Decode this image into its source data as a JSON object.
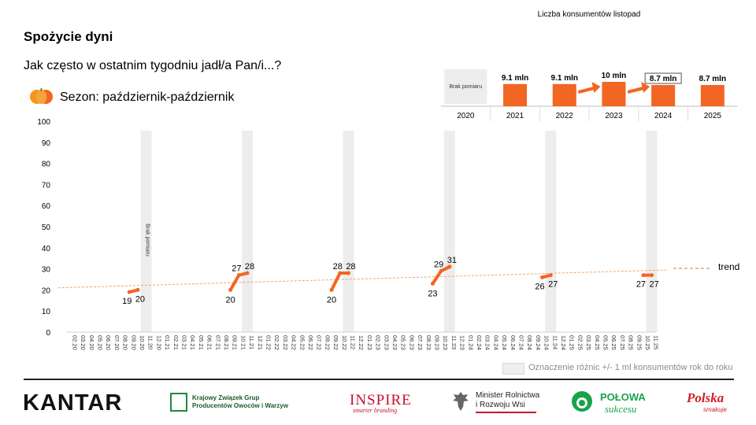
{
  "header": {
    "title": "Spożycie dyni",
    "subtitle": "Jak często w ostatnim tygodniu jadł/a Pan/i...?",
    "season": "Sezon: październik-październik"
  },
  "colors": {
    "accent": "#f26522",
    "trend": "#f4a26b",
    "band": "#ededed",
    "text": "#000000"
  },
  "chart_data": [
    {
      "type": "line",
      "title": "",
      "ylim": [
        0,
        100
      ],
      "yticks": [
        0,
        10,
        20,
        30,
        40,
        50,
        60,
        70,
        80,
        90,
        100
      ],
      "x": [
        "02.20",
        "03.20",
        "04.20",
        "05.20",
        "06.20",
        "07.20",
        "08.20",
        "09.20",
        "10.20",
        "11.20",
        "12.20",
        "01.21",
        "02.21",
        "03.21",
        "04.21",
        "05.21",
        "06.21",
        "07.21",
        "08.21",
        "09.21",
        "10.21",
        "11.21",
        "12.21",
        "01.22",
        "02.22",
        "03.22",
        "04.22",
        "05.22",
        "06.22",
        "07.22",
        "08.22",
        "09.22",
        "10.22",
        "11.22",
        "12.22",
        "01.23",
        "02.23",
        "03.23",
        "04.23",
        "05.23",
        "06.23",
        "07.23",
        "08.23",
        "09.23",
        "10.23",
        "11.23",
        "12.23",
        "01.24",
        "02.24",
        "03.24",
        "04.24",
        "05.24",
        "06.24",
        "07.24",
        "08.24",
        "09.24",
        "10.24",
        "11.24",
        "12.24",
        "01.25",
        "02.25",
        "03.25",
        "04.25",
        "05.25",
        "06.25",
        "07.25",
        "08.25",
        "09.25",
        "10.25",
        "11.25"
      ],
      "highlight_months": [
        "11.20",
        "11.21",
        "11.22",
        "11.23",
        "11.24",
        "11.25"
      ],
      "band_annotation": {
        "month": "11.20",
        "text": "Brak pomiaru"
      },
      "series": [
        {
          "segments": [
            [
              {
                "x": "09.20",
                "y": 19
              },
              {
                "x": "10.20",
                "y": 20
              }
            ],
            [
              {
                "x": "09.21",
                "y": 20
              },
              {
                "x": "10.21",
                "y": 27
              },
              {
                "x": "11.21",
                "y": 28
              }
            ],
            [
              {
                "x": "09.22",
                "y": 20
              },
              {
                "x": "10.22",
                "y": 28
              },
              {
                "x": "11.22",
                "y": 28
              }
            ],
            [
              {
                "x": "09.23",
                "y": 23
              },
              {
                "x": "10.23",
                "y": 29
              },
              {
                "x": "11.23",
                "y": 31
              }
            ],
            [
              {
                "x": "10.24",
                "y": 26
              },
              {
                "x": "11.24",
                "y": 27
              }
            ],
            [
              {
                "x": "10.25",
                "y": 27
              },
              {
                "x": "11.25",
                "y": 27
              }
            ]
          ]
        }
      ],
      "trend": {
        "name": "trend",
        "from": {
          "x": "02.20",
          "y": 21
        },
        "to": {
          "x": "11.25",
          "y": 29.5
        }
      },
      "legend": {
        "swatch_label": "Oznaczenie różnic +/- 1 ml konsumentów rok do roku"
      }
    },
    {
      "type": "bar",
      "title": "Liczba konsumentów listopad",
      "categories": [
        "2020",
        "2021",
        "2022",
        "2023",
        "2024",
        "2025"
      ],
      "values": [
        null,
        9.1,
        9.1,
        10,
        8.7,
        8.7
      ],
      "labels": [
        "Brak pomiaru",
        "9.1  mln",
        "9.1  mln",
        "10  mln",
        "8.7  mln",
        "8.7  mln"
      ],
      "arrows_into": [
        "2023",
        "2024"
      ],
      "boxed": [
        "2024"
      ]
    }
  ],
  "footer": {
    "kantar": "KANTAR",
    "kzg_line1": "Krajowy Związek Grup",
    "kzg_line2": "Producentów Owoców i Warzyw",
    "inspire": "INSPIRE",
    "inspire_sub": "smarter branding",
    "minister_line1": "Minister Rolnictwa",
    "minister_line2": "i Rozwoju Wsi",
    "polowa_line1": "POŁOWA",
    "polowa_line2": "sukcesu",
    "polska_line1": "Polska",
    "polska_line2": "smakuje"
  }
}
